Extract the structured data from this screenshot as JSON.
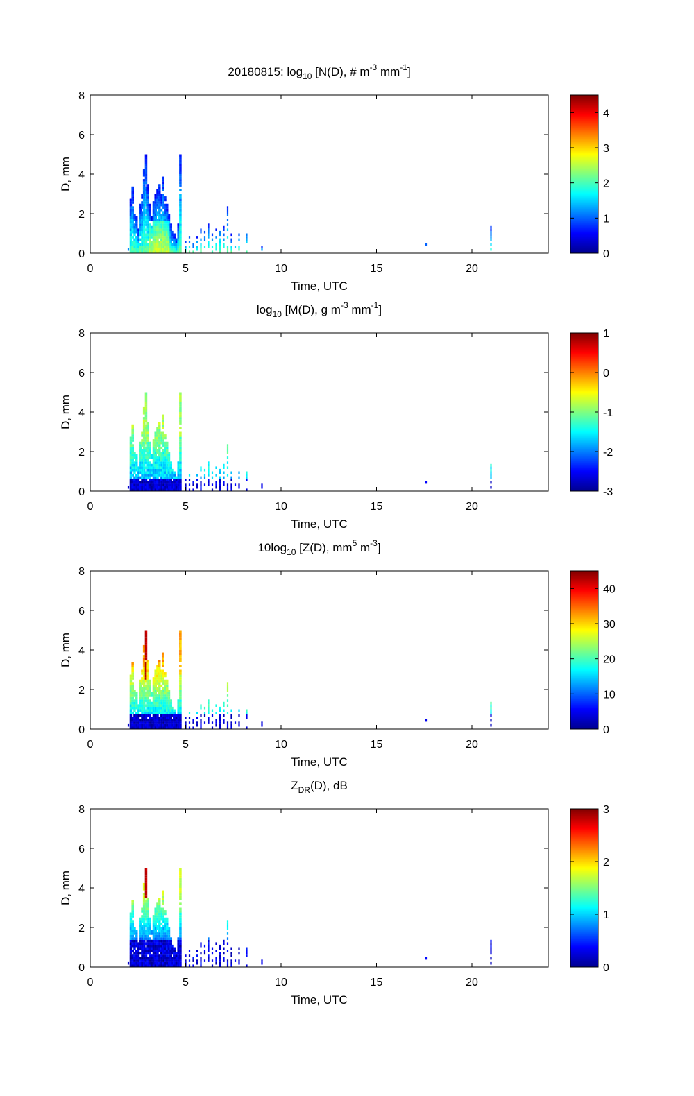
{
  "chart_data": [
    {
      "type": "heatmap",
      "title": {
        "prefix": "20180815: log",
        "sub": "10",
        "body": " [N(D), # m",
        "sup1": "-3",
        "mid": " mm",
        "sup2": "-1",
        "end": "]"
      },
      "xlabel": "Time, UTC",
      "ylabel": "D, mm",
      "xlim": [
        0,
        24
      ],
      "ylim": [
        0,
        8
      ],
      "xticks": [
        0,
        5,
        10,
        15,
        20
      ],
      "yticks": [
        0,
        2,
        4,
        6,
        8
      ],
      "colorbar": {
        "min": 0,
        "max": 4.5,
        "ticks": [
          0,
          1,
          2,
          3,
          4
        ],
        "tick_labels": [
          "0",
          "1",
          "2",
          "3",
          "4"
        ]
      },
      "profile": "N"
    },
    {
      "type": "heatmap",
      "title": {
        "prefix": "log",
        "sub": "10",
        "body": " [M(D), g m",
        "sup1": "-3",
        "mid": " mm",
        "sup2": "-1",
        "end": "]"
      },
      "xlabel": "Time, UTC",
      "ylabel": "D, mm",
      "xlim": [
        0,
        24
      ],
      "ylim": [
        0,
        8
      ],
      "xticks": [
        0,
        5,
        10,
        15,
        20
      ],
      "yticks": [
        0,
        2,
        4,
        6,
        8
      ],
      "colorbar": {
        "min": -3,
        "max": 1,
        "ticks": [
          -3,
          -2,
          -1,
          0,
          1
        ],
        "tick_labels": [
          "-3",
          "-2",
          "-1",
          "0",
          "1"
        ]
      },
      "profile": "M"
    },
    {
      "type": "heatmap",
      "title": {
        "prefix": "10log",
        "sub": "10",
        "body": " [Z(D),  mm",
        "sup1": "5",
        "mid": " m",
        "sup2": "-3",
        "end": "]"
      },
      "xlabel": "Time, UTC",
      "ylabel": "D, mm",
      "xlim": [
        0,
        24
      ],
      "ylim": [
        0,
        8
      ],
      "xticks": [
        0,
        5,
        10,
        15,
        20
      ],
      "yticks": [
        0,
        2,
        4,
        6,
        8
      ],
      "colorbar": {
        "min": 0,
        "max": 45,
        "ticks": [
          0,
          10,
          20,
          30,
          40
        ],
        "tick_labels": [
          "0",
          "10",
          "20",
          "30",
          "40"
        ]
      },
      "profile": "Z"
    },
    {
      "type": "heatmap",
      "title": {
        "prefix": "Z",
        "sub": "DR",
        "body": "(D), dB",
        "sup1": "",
        "mid": "",
        "sup2": "",
        "end": ""
      },
      "xlabel": "Time, UTC",
      "ylabel": "D, mm",
      "xlim": [
        0,
        24
      ],
      "ylim": [
        0,
        8
      ],
      "xticks": [
        0,
        5,
        10,
        15,
        20
      ],
      "yticks": [
        0,
        2,
        4,
        6,
        8
      ],
      "colorbar": {
        "min": 0,
        "max": 3,
        "ticks": [
          0,
          1,
          2,
          3
        ],
        "tick_labels": [
          "0",
          "1",
          "2",
          "3"
        ]
      },
      "profile": "ZDR"
    }
  ],
  "colormap": "jet",
  "colormap_stops": [
    "#00008f",
    "#0000ff",
    "#00ffff",
    "#ffff00",
    "#ff0000",
    "#800000"
  ],
  "activity": [
    {
      "t": 2.0,
      "dmax": 0.2
    },
    {
      "t": 2.1,
      "dmax": 2.7
    },
    {
      "t": 2.2,
      "dmax": 3.3
    },
    {
      "t": 2.3,
      "dmax": 2.2
    },
    {
      "t": 2.4,
      "dmax": 1.9
    },
    {
      "t": 2.5,
      "dmax": 1.2
    },
    {
      "t": 2.6,
      "dmax": 2.5
    },
    {
      "t": 2.7,
      "dmax": 2.9
    },
    {
      "t": 2.8,
      "dmax": 4.2
    },
    {
      "t": 2.9,
      "dmax": 4.9
    },
    {
      "t": 3.0,
      "dmax": 3.4
    },
    {
      "t": 3.1,
      "dmax": 2.4
    },
    {
      "t": 3.2,
      "dmax": 1.8
    },
    {
      "t": 3.3,
      "dmax": 2.6
    },
    {
      "t": 3.4,
      "dmax": 2.9
    },
    {
      "t": 3.5,
      "dmax": 3.2
    },
    {
      "t": 3.6,
      "dmax": 3.4
    },
    {
      "t": 3.7,
      "dmax": 3.0
    },
    {
      "t": 3.8,
      "dmax": 3.8
    },
    {
      "t": 3.9,
      "dmax": 2.8
    },
    {
      "t": 4.0,
      "dmax": 2.4
    },
    {
      "t": 4.1,
      "dmax": 1.9
    },
    {
      "t": 4.2,
      "dmax": 1.4
    },
    {
      "t": 4.3,
      "dmax": 1.1
    },
    {
      "t": 4.4,
      "dmax": 0.9
    },
    {
      "t": 4.5,
      "dmax": 0.7
    },
    {
      "t": 4.6,
      "dmax": 1.4
    },
    {
      "t": 4.7,
      "dmax": 4.9
    },
    {
      "t": 5.0,
      "dmax": 0.6
    },
    {
      "t": 5.2,
      "dmax": 0.9
    },
    {
      "t": 5.4,
      "dmax": 0.5
    },
    {
      "t": 5.6,
      "dmax": 0.8
    },
    {
      "t": 5.8,
      "dmax": 1.3
    },
    {
      "t": 6.0,
      "dmax": 1.1
    },
    {
      "t": 6.2,
      "dmax": 1.4
    },
    {
      "t": 6.4,
      "dmax": 1.0
    },
    {
      "t": 6.6,
      "dmax": 1.2
    },
    {
      "t": 6.8,
      "dmax": 1.6
    },
    {
      "t": 7.0,
      "dmax": 1.3
    },
    {
      "t": 7.2,
      "dmax": 2.3
    },
    {
      "t": 7.4,
      "dmax": 0.9
    },
    {
      "t": 7.6,
      "dmax": 0.6
    },
    {
      "t": 7.8,
      "dmax": 1.3
    },
    {
      "t": 8.2,
      "dmax": 1.1
    },
    {
      "t": 9.0,
      "dmax": 0.3
    },
    {
      "t": 17.6,
      "dmax": 0.5
    },
    {
      "t": 21.0,
      "dmax": 1.3
    }
  ]
}
